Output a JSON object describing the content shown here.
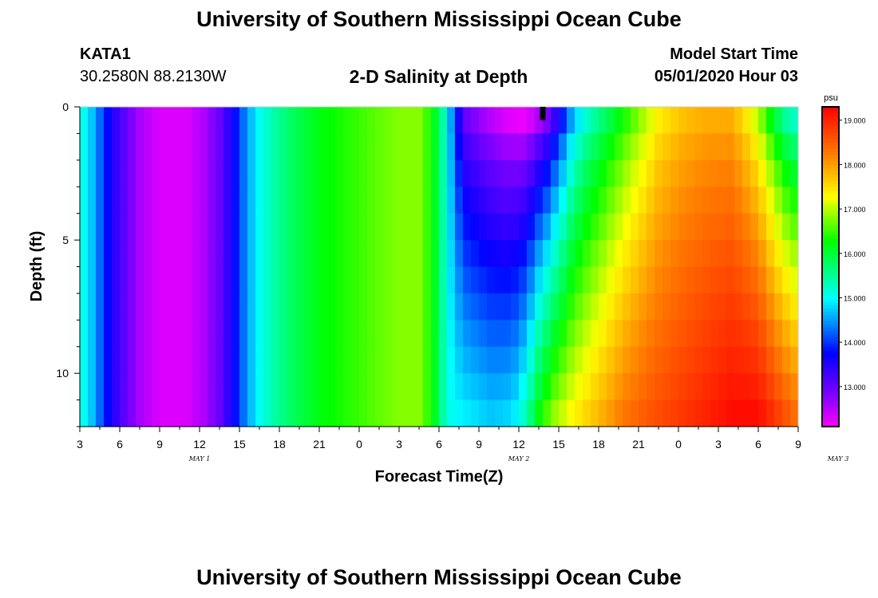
{
  "header": {
    "title": "University of Southern Mississippi Ocean Cube",
    "station": "KATA1",
    "coordinates": "30.2580N 88.2130W",
    "subtitle": "2-D Salinity at Depth",
    "model_start_label": "Model Start Time",
    "model_start_value": "05/01/2020 Hour 03"
  },
  "footer": {
    "title": "University of Southern Mississippi Ocean Cube"
  },
  "chart_data": {
    "type": "heatmap",
    "title": "2-D Salinity at Depth",
    "xlabel": "Forecast Time(Z)",
    "ylabel": "Depth (ft)",
    "x_tick_labels": [
      "3",
      "6",
      "9",
      "12",
      "15",
      "18",
      "21",
      "0",
      "3",
      "6",
      "9",
      "12",
      "15",
      "18",
      "21",
      "0",
      "3",
      "6",
      "9"
    ],
    "date_labels": [
      {
        "label": "MAY 1",
        "hour": 12
      },
      {
        "label": "MAY 2",
        "hour": 36
      },
      {
        "label": "MAY 3",
        "hour": 60
      }
    ],
    "xlim_hours": [
      3,
      57
    ],
    "y_tick_labels": [
      "0",
      "5",
      "10"
    ],
    "y_ticks": [
      0,
      5,
      10
    ],
    "ylim": [
      0,
      12
    ],
    "y_inverted": true,
    "colorbar": {
      "unit": "psu",
      "tick_labels": [
        "19.000",
        "18.000",
        "17.000",
        "16.000",
        "15.000",
        "14.000",
        "13.000"
      ],
      "ticks": [
        19,
        18,
        17,
        16,
        15,
        14,
        13
      ],
      "range": [
        12.1,
        19.3
      ]
    },
    "surface_profile": [
      {
        "t": 3.0,
        "v": 15.2
      },
      {
        "t": 3.6,
        "v": 14.9
      },
      {
        "t": 4.2,
        "v": 14.5
      },
      {
        "t": 4.8,
        "v": 14.0
      },
      {
        "t": 5.5,
        "v": 13.5
      },
      {
        "t": 6.5,
        "v": 13.0
      },
      {
        "t": 7.5,
        "v": 12.6
      },
      {
        "t": 9.0,
        "v": 12.3
      },
      {
        "t": 11.0,
        "v": 12.3
      },
      {
        "t": 12.5,
        "v": 12.6
      },
      {
        "t": 13.5,
        "v": 13.0
      },
      {
        "t": 14.3,
        "v": 13.5
      },
      {
        "t": 14.9,
        "v": 14.0
      },
      {
        "t": 15.6,
        "v": 14.5
      },
      {
        "t": 16.4,
        "v": 15.0
      },
      {
        "t": 17.5,
        "v": 15.4
      },
      {
        "t": 19.0,
        "v": 15.8
      },
      {
        "t": 21.0,
        "v": 16.2
      },
      {
        "t": 24.0,
        "v": 16.5
      },
      {
        "t": 27.0,
        "v": 16.8
      },
      {
        "t": 28.5,
        "v": 16.8
      },
      {
        "t": 29.5,
        "v": 16.3
      },
      {
        "t": 30.0,
        "v": 15.8
      },
      {
        "t": 30.4,
        "v": 15.3
      },
      {
        "t": 30.8,
        "v": 14.7
      },
      {
        "t": 31.3,
        "v": 13.8
      },
      {
        "t": 32.0,
        "v": 13.0
      },
      {
        "t": 33.5,
        "v": 12.6
      },
      {
        "t": 35.0,
        "v": 12.3
      },
      {
        "t": 36.5,
        "v": 12.2
      },
      {
        "t": 38.0,
        "v": 12.8
      },
      {
        "t": 39.0,
        "v": 13.6
      },
      {
        "t": 40.0,
        "v": 14.6
      },
      {
        "t": 41.0,
        "v": 15.2
      },
      {
        "t": 42.0,
        "v": 15.6
      },
      {
        "t": 43.5,
        "v": 16.2
      },
      {
        "t": 45.0,
        "v": 16.8
      },
      {
        "t": 46.5,
        "v": 17.4
      },
      {
        "t": 48.0,
        "v": 17.7
      },
      {
        "t": 50.0,
        "v": 17.9
      },
      {
        "t": 52.0,
        "v": 17.9
      },
      {
        "t": 53.0,
        "v": 17.5
      },
      {
        "t": 54.0,
        "v": 17.0
      },
      {
        "t": 55.0,
        "v": 16.2
      },
      {
        "t": 56.0,
        "v": 15.5
      },
      {
        "t": 57.0,
        "v": 15.2
      }
    ],
    "bottom_profile": [
      {
        "t": 3.0,
        "v": 15.2
      },
      {
        "t": 3.6,
        "v": 14.9
      },
      {
        "t": 4.2,
        "v": 14.5
      },
      {
        "t": 4.8,
        "v": 14.0
      },
      {
        "t": 5.5,
        "v": 13.5
      },
      {
        "t": 6.5,
        "v": 13.0
      },
      {
        "t": 7.5,
        "v": 12.6
      },
      {
        "t": 9.0,
        "v": 12.3
      },
      {
        "t": 11.0,
        "v": 12.3
      },
      {
        "t": 12.5,
        "v": 12.6
      },
      {
        "t": 13.5,
        "v": 13.0
      },
      {
        "t": 14.3,
        "v": 13.5
      },
      {
        "t": 14.9,
        "v": 14.0
      },
      {
        "t": 15.6,
        "v": 14.5
      },
      {
        "t": 16.4,
        "v": 15.0
      },
      {
        "t": 17.5,
        "v": 15.4
      },
      {
        "t": 19.0,
        "v": 15.8
      },
      {
        "t": 21.0,
        "v": 16.2
      },
      {
        "t": 24.0,
        "v": 16.5
      },
      {
        "t": 27.0,
        "v": 16.8
      },
      {
        "t": 28.5,
        "v": 16.8
      },
      {
        "t": 29.5,
        "v": 16.3
      },
      {
        "t": 30.0,
        "v": 15.8
      },
      {
        "t": 30.4,
        "v": 15.3
      },
      {
        "t": 31.0,
        "v": 15.0
      },
      {
        "t": 32.0,
        "v": 14.9
      },
      {
        "t": 34.0,
        "v": 14.7
      },
      {
        "t": 35.5,
        "v": 14.8
      },
      {
        "t": 36.5,
        "v": 15.3
      },
      {
        "t": 37.5,
        "v": 16.2
      },
      {
        "t": 38.5,
        "v": 16.8
      },
      {
        "t": 40.0,
        "v": 17.3
      },
      {
        "t": 42.0,
        "v": 17.8
      },
      {
        "t": 44.0,
        "v": 18.3
      },
      {
        "t": 46.0,
        "v": 18.6
      },
      {
        "t": 48.0,
        "v": 18.8
      },
      {
        "t": 50.0,
        "v": 19.0
      },
      {
        "t": 52.0,
        "v": 19.2
      },
      {
        "t": 54.0,
        "v": 19.2
      },
      {
        "t": 55.0,
        "v": 18.9
      },
      {
        "t": 56.0,
        "v": 18.6
      },
      {
        "t": 57.0,
        "v": 18.3
      }
    ],
    "marker": {
      "t": 37.8,
      "depth_from": 0.0,
      "depth_to": 0.5,
      "color": "#000000"
    }
  }
}
